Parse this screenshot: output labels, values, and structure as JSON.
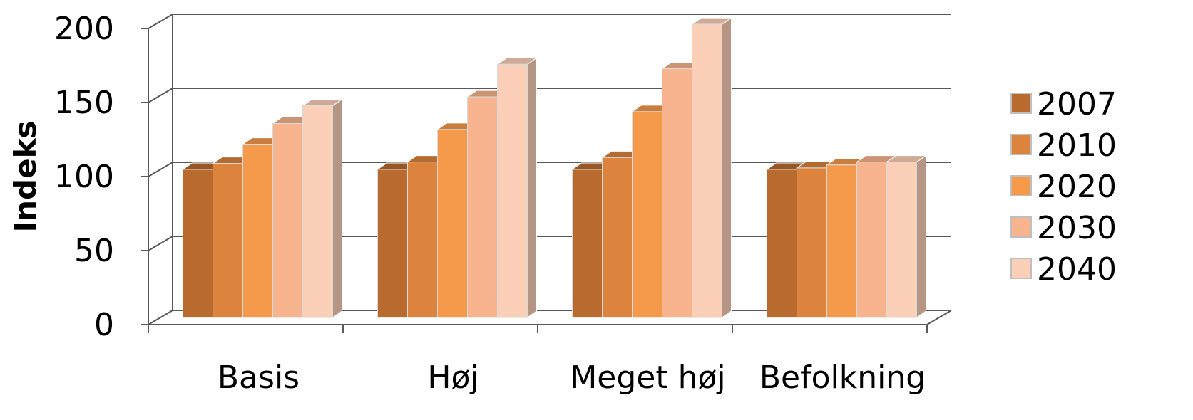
{
  "chart_data": {
    "type": "bar",
    "title": "",
    "xlabel": "",
    "ylabel": "Indeks",
    "ylim": [
      0,
      200
    ],
    "yticks": [
      0,
      50,
      100,
      150,
      200
    ],
    "grid": true,
    "legend_position": "right",
    "categories": [
      "Basis",
      "Høj",
      "Meget høj",
      "Befolkning"
    ],
    "series": [
      {
        "name": "2007",
        "color": "#B96A2E",
        "values": [
          100,
          100,
          100,
          100
        ]
      },
      {
        "name": "2010",
        "color": "#DC833D",
        "values": [
          104,
          105,
          108,
          101
        ]
      },
      {
        "name": "2020",
        "color": "#F59A4A",
        "values": [
          117,
          127,
          139,
          103
        ]
      },
      {
        "name": "2030",
        "color": "#F8B48E",
        "values": [
          131,
          149,
          168,
          105
        ]
      },
      {
        "name": "2040",
        "color": "#FCCFB8",
        "values": [
          143,
          171,
          198,
          105
        ]
      }
    ]
  }
}
